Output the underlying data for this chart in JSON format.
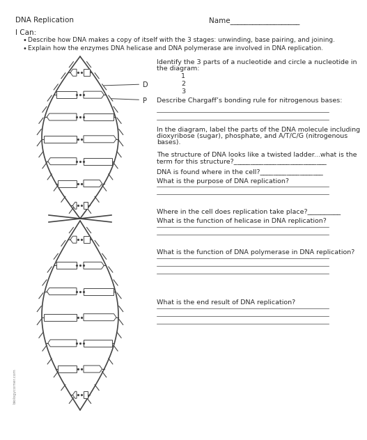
{
  "title": "DNA Replication",
  "name_label": "Name___________________",
  "i_can": "I Can:",
  "bullet1": "Describe how DNA makes a copy of itself with the 3 stages: unwinding, base pairing, and joining.",
  "bullet2": "Explain how the enzymes DNA helicase and DNA polymerase are involved in DNA replication.",
  "q1": "Identify the 3 parts of a nucleotide and circle a nucleotide in",
  "q1b": "the diagram:",
  "q1_1": "1",
  "q1_2": "2",
  "q1_3": "3",
  "q2": "Describe Chargaff’s bonding rule for nitrogenous bases:",
  "q3": "In the diagram, label the parts of the DNA molecule including",
  "q3b": "dioxyribose (sugar), phosphate, and A/T/C/G (nitrogenous",
  "q3c": "bases).",
  "q4": "The structure of DNA looks like a twisted ladder...what is the",
  "q4b": "term for this structure?____________________________",
  "q5": "DNA is found where in the cell?___________________",
  "q6": "What is the purpose of DNA replication?",
  "q7": "Where in the cell does replication take place?__________",
  "q8": "What is the function of helicase in DNA replication?",
  "q9": "What is the function of DNA polymerase in DNA replication?",
  "q10": "What is the end result of DNA replication?",
  "watermark": "biologycorner.com",
  "bg_color": "#ffffff",
  "text_color": "#2a2a2a",
  "dna_color": "#444444",
  "label_D": "D",
  "label_P": "P",
  "line_color": "#444444"
}
